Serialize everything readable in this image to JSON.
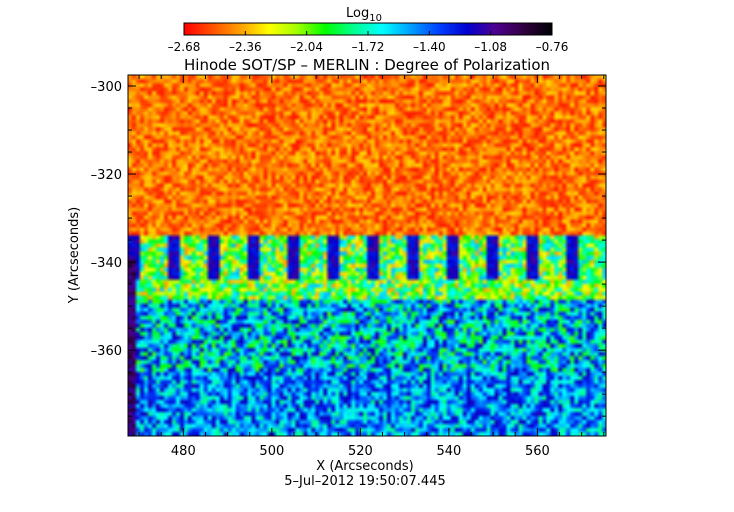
{
  "chart_data": {
    "type": "heatmap",
    "title": "Hinode SOT/SP – MERLIN : Degree of Polarization",
    "xlabel": "X (Arcseconds)",
    "ylabel": "Y (Arcseconds)",
    "date_label": "5–Jul–2012 19:50:07.445",
    "xlim": [
      467.5,
      575.5
    ],
    "ylim": [
      -379.5,
      -297.5
    ],
    "x_ticks": [
      480,
      500,
      520,
      540,
      560
    ],
    "x_tick_labels": [
      "480",
      "500",
      "520",
      "540",
      "560"
    ],
    "y_ticks": [
      -300,
      -320,
      -340,
      -360
    ],
    "y_tick_labels": [
      "–300",
      "–320",
      "–340",
      "–360"
    ],
    "colorbar": {
      "label_main": "Log",
      "label_sub": "10",
      "vmin": -2.68,
      "vmax": -0.76,
      "ticks": [
        -2.68,
        -2.36,
        -2.04,
        -1.72,
        -1.4,
        -1.08,
        -0.76
      ],
      "tick_labels": [
        "–2.68",
        "–2.36",
        "–2.04",
        "–1.72",
        "–1.40",
        "–1.08",
        "–0.76"
      ],
      "colors": [
        "#ff0000",
        "#ff5000",
        "#ffa000",
        "#ffff00",
        "#a0ff00",
        "#00ff00",
        "#00ff90",
        "#00ffff",
        "#00a0ff",
        "#0040ff",
        "#0000d0",
        "#500090",
        "#300040",
        "#000000"
      ]
    }
  }
}
